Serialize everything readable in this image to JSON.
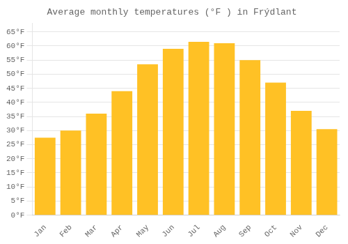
{
  "chart_data": {
    "type": "bar",
    "title": "Average monthly temperatures (°F ) in Frýdlant",
    "categories": [
      "Jan",
      "Feb",
      "Mar",
      "Apr",
      "May",
      "Jun",
      "Jul",
      "Aug",
      "Sep",
      "Oct",
      "Nov",
      "Dec"
    ],
    "values": [
      27.5,
      30.0,
      36.0,
      44.0,
      53.5,
      59.0,
      61.5,
      61.0,
      55.0,
      47.0,
      37.0,
      30.5
    ],
    "color": "#FFC125",
    "ylim": [
      0,
      68
    ],
    "yticks": [
      {
        "value": 0,
        "label": "0°F"
      },
      {
        "value": 5,
        "label": "5°F"
      },
      {
        "value": 10,
        "label": "10°F"
      },
      {
        "value": 15,
        "label": "15°F"
      },
      {
        "value": 20,
        "label": "20°F"
      },
      {
        "value": 25,
        "label": "25°F"
      },
      {
        "value": 30,
        "label": "30°F"
      },
      {
        "value": 35,
        "label": "35°F"
      },
      {
        "value": 40,
        "label": "40°F"
      },
      {
        "value": 45,
        "label": "45°F"
      },
      {
        "value": 50,
        "label": "50°F"
      },
      {
        "value": 55,
        "label": "55°F"
      },
      {
        "value": 60,
        "label": "60°F"
      },
      {
        "value": 65,
        "label": "65°F"
      }
    ],
    "grid": true
  }
}
